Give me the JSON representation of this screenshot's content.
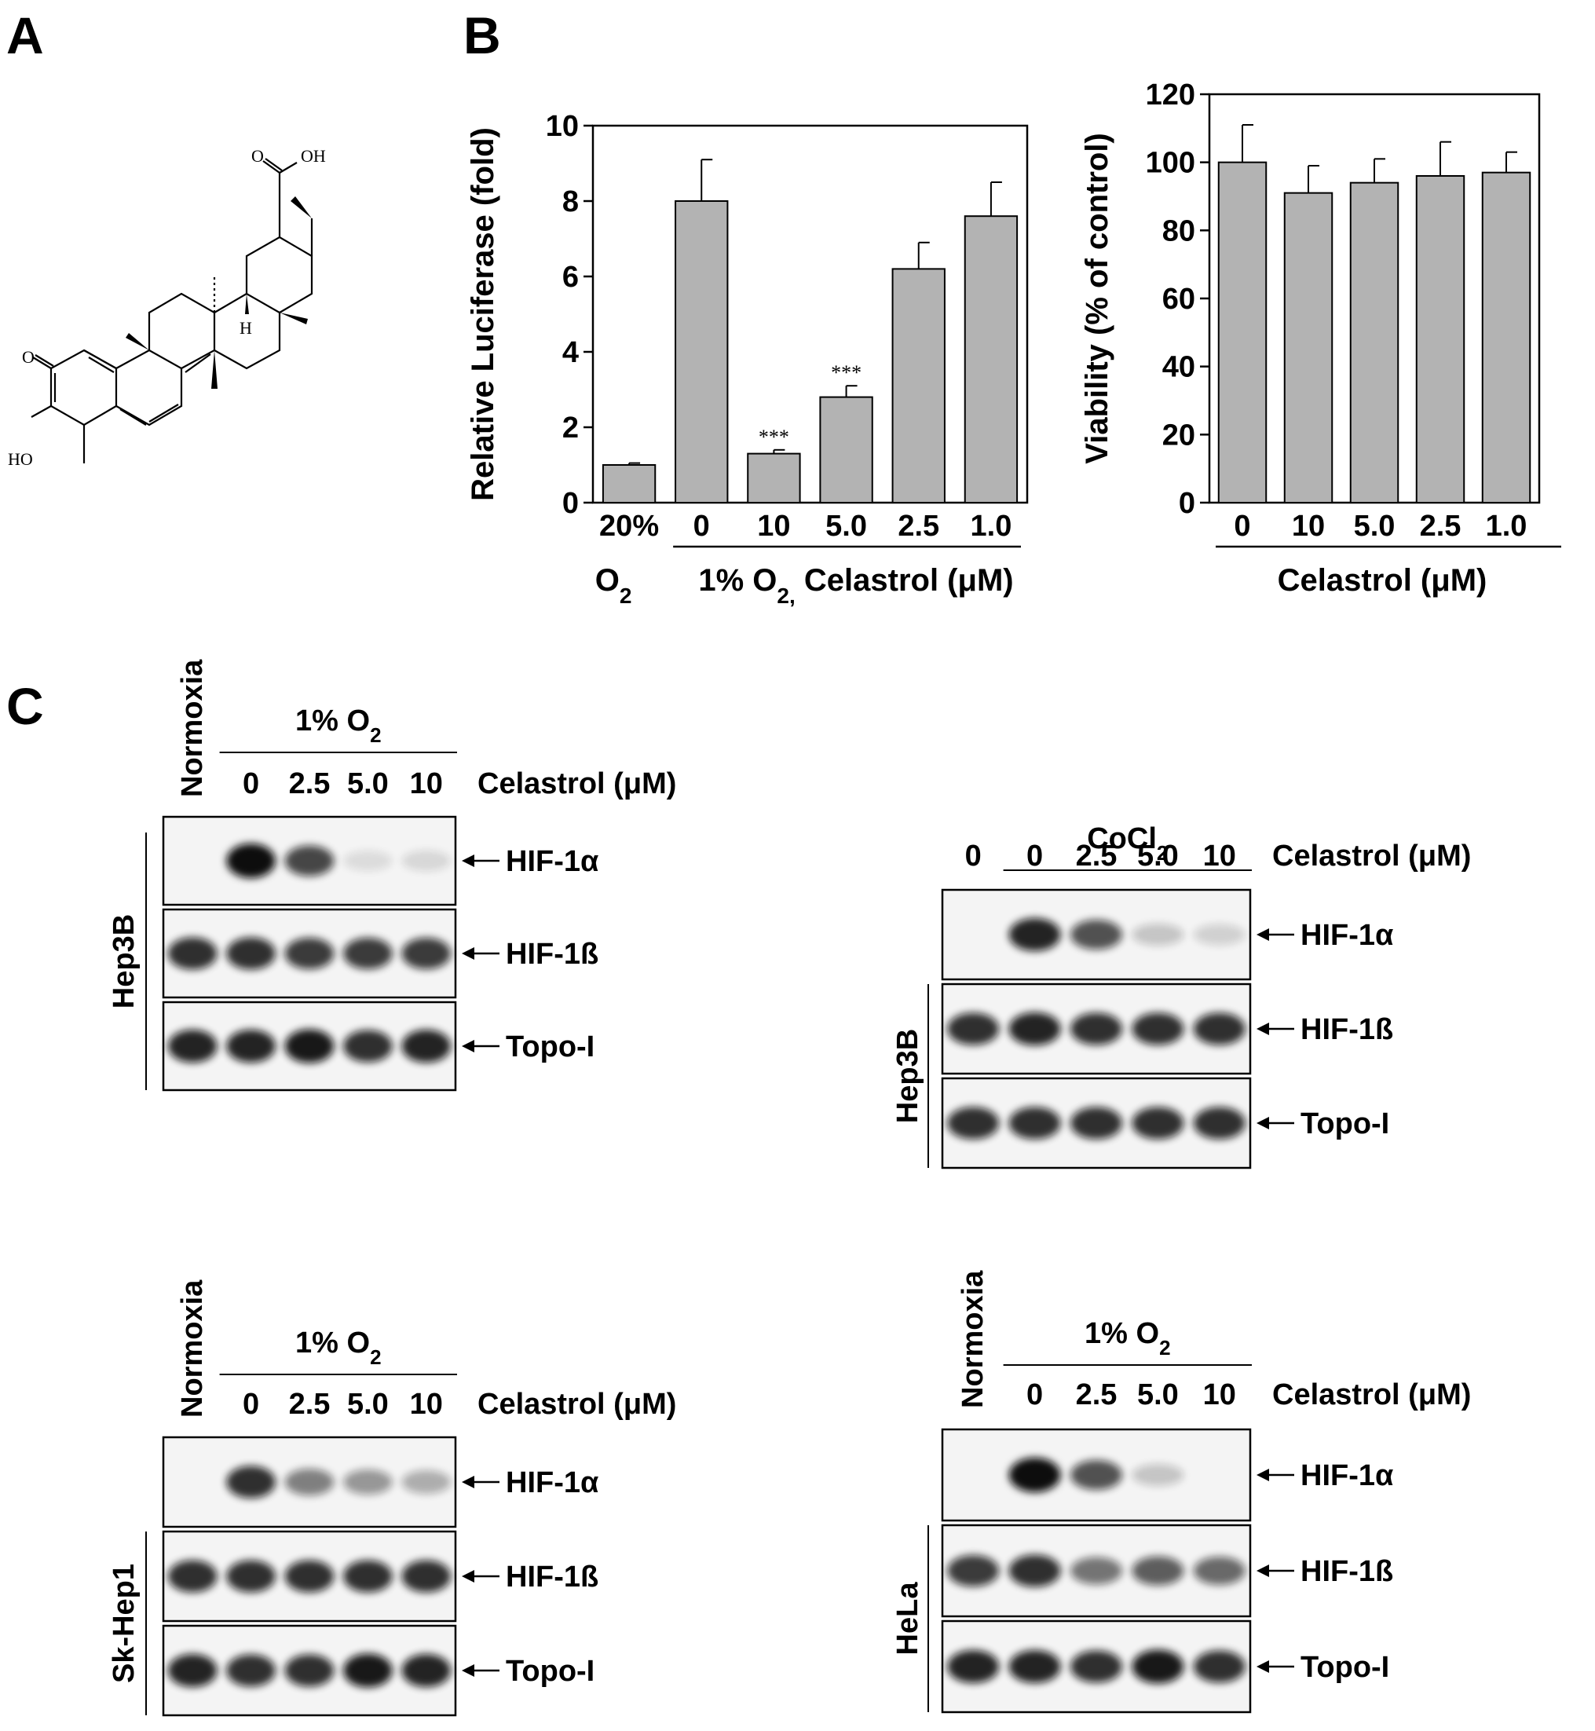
{
  "panels": {
    "a": "A",
    "b": "B",
    "c": "C"
  },
  "chemical": {
    "oh_top": "OH",
    "o_top": "O",
    "o_left": "O",
    "ho": "HO",
    "h": "H"
  },
  "chart_data": [
    {
      "type": "bar",
      "ylabel": "Relative Luciferase (fold)",
      "ylim": [
        0,
        10
      ],
      "yticks": [
        "0",
        "2",
        "4",
        "6",
        "8",
        "10"
      ],
      "categories": [
        "20%",
        "0",
        "10",
        "5.0",
        "2.5",
        "1.0"
      ],
      "values": [
        1.0,
        8.0,
        1.3,
        2.8,
        6.2,
        7.6
      ],
      "errors": [
        0.05,
        1.1,
        0.1,
        0.3,
        0.7,
        0.9
      ],
      "annotations": [
        "",
        "",
        "***",
        "***",
        "",
        ""
      ],
      "group_label_left": "O",
      "group_label_left_sub": "2",
      "group_label_main": "1% O",
      "group_label_main_sub": "2,",
      "group_label_main_rest": " Celastrol (μM)",
      "bar_color": "#b3b3b3"
    },
    {
      "type": "bar",
      "ylabel": "Viability (% of control)",
      "ylim": [
        0,
        120
      ],
      "yticks": [
        "0",
        "20",
        "40",
        "60",
        "80",
        "100",
        "120"
      ],
      "categories": [
        "0",
        "10",
        "5.0",
        "2.5",
        "1.0"
      ],
      "values": [
        100,
        91,
        94,
        96,
        97
      ],
      "errors": [
        11,
        8,
        7,
        10,
        6
      ],
      "group_label": "Celastrol (μM)",
      "bar_color": "#b3b3b3"
    }
  ],
  "blots": [
    {
      "normoxia": "Normoxia",
      "cond": "1% O",
      "cond_sub": "2",
      "lanes": [
        "0",
        "2.5",
        "5.0",
        "10"
      ],
      "drug": "Celastrol (μM)",
      "cell": "Hep3B",
      "rows": [
        {
          "label": "HIF-1α",
          "intensity": [
            0.0,
            1.0,
            0.75,
            0.1,
            0.12
          ]
        },
        {
          "label": "HIF-1ß",
          "intensity": [
            0.85,
            0.85,
            0.8,
            0.8,
            0.8
          ]
        },
        {
          "label": "Topo-I",
          "intensity": [
            0.9,
            0.9,
            0.95,
            0.85,
            0.9
          ]
        }
      ]
    },
    {
      "cond": "CoCl",
      "cond_sub": "2",
      "lanes": [
        "0",
        "0",
        "2.5",
        "5.0",
        "10"
      ],
      "drug": "Celastrol (μM)",
      "cell": "Hep3B",
      "rows": [
        {
          "label": "HIF-1α",
          "intensity": [
            0.0,
            0.9,
            0.7,
            0.2,
            0.15
          ]
        },
        {
          "label": "HIF-1ß",
          "intensity": [
            0.85,
            0.9,
            0.85,
            0.85,
            0.85
          ]
        },
        {
          "label": "Topo-I",
          "intensity": [
            0.85,
            0.85,
            0.85,
            0.85,
            0.85
          ]
        }
      ]
    },
    {
      "normoxia": "Normoxia",
      "cond": "1% O",
      "cond_sub": "2",
      "lanes": [
        "0",
        "2.5",
        "5.0",
        "10"
      ],
      "drug": "Celastrol (μM)",
      "cell": "Sk-Hep1",
      "rows": [
        {
          "label": "HIF-1α",
          "intensity": [
            0.0,
            0.85,
            0.5,
            0.4,
            0.3
          ]
        },
        {
          "label": "HIF-1ß",
          "intensity": [
            0.85,
            0.85,
            0.85,
            0.85,
            0.85
          ]
        },
        {
          "label": "Topo-I",
          "intensity": [
            0.9,
            0.85,
            0.85,
            0.95,
            0.9
          ]
        }
      ]
    },
    {
      "normoxia": "Normoxia",
      "cond": "1% O",
      "cond_sub": "2",
      "lanes": [
        "0",
        "2.5",
        "5.0",
        "10"
      ],
      "drug": "Celastrol (μM)",
      "cell": "HeLa",
      "rows": [
        {
          "label": "HIF-1α",
          "intensity": [
            0.0,
            1.0,
            0.7,
            0.2,
            0.0
          ]
        },
        {
          "label": "HIF-1ß",
          "intensity": [
            0.8,
            0.85,
            0.55,
            0.65,
            0.6
          ]
        },
        {
          "label": "Topo-I",
          "intensity": [
            0.9,
            0.9,
            0.85,
            0.95,
            0.85
          ]
        }
      ]
    }
  ]
}
